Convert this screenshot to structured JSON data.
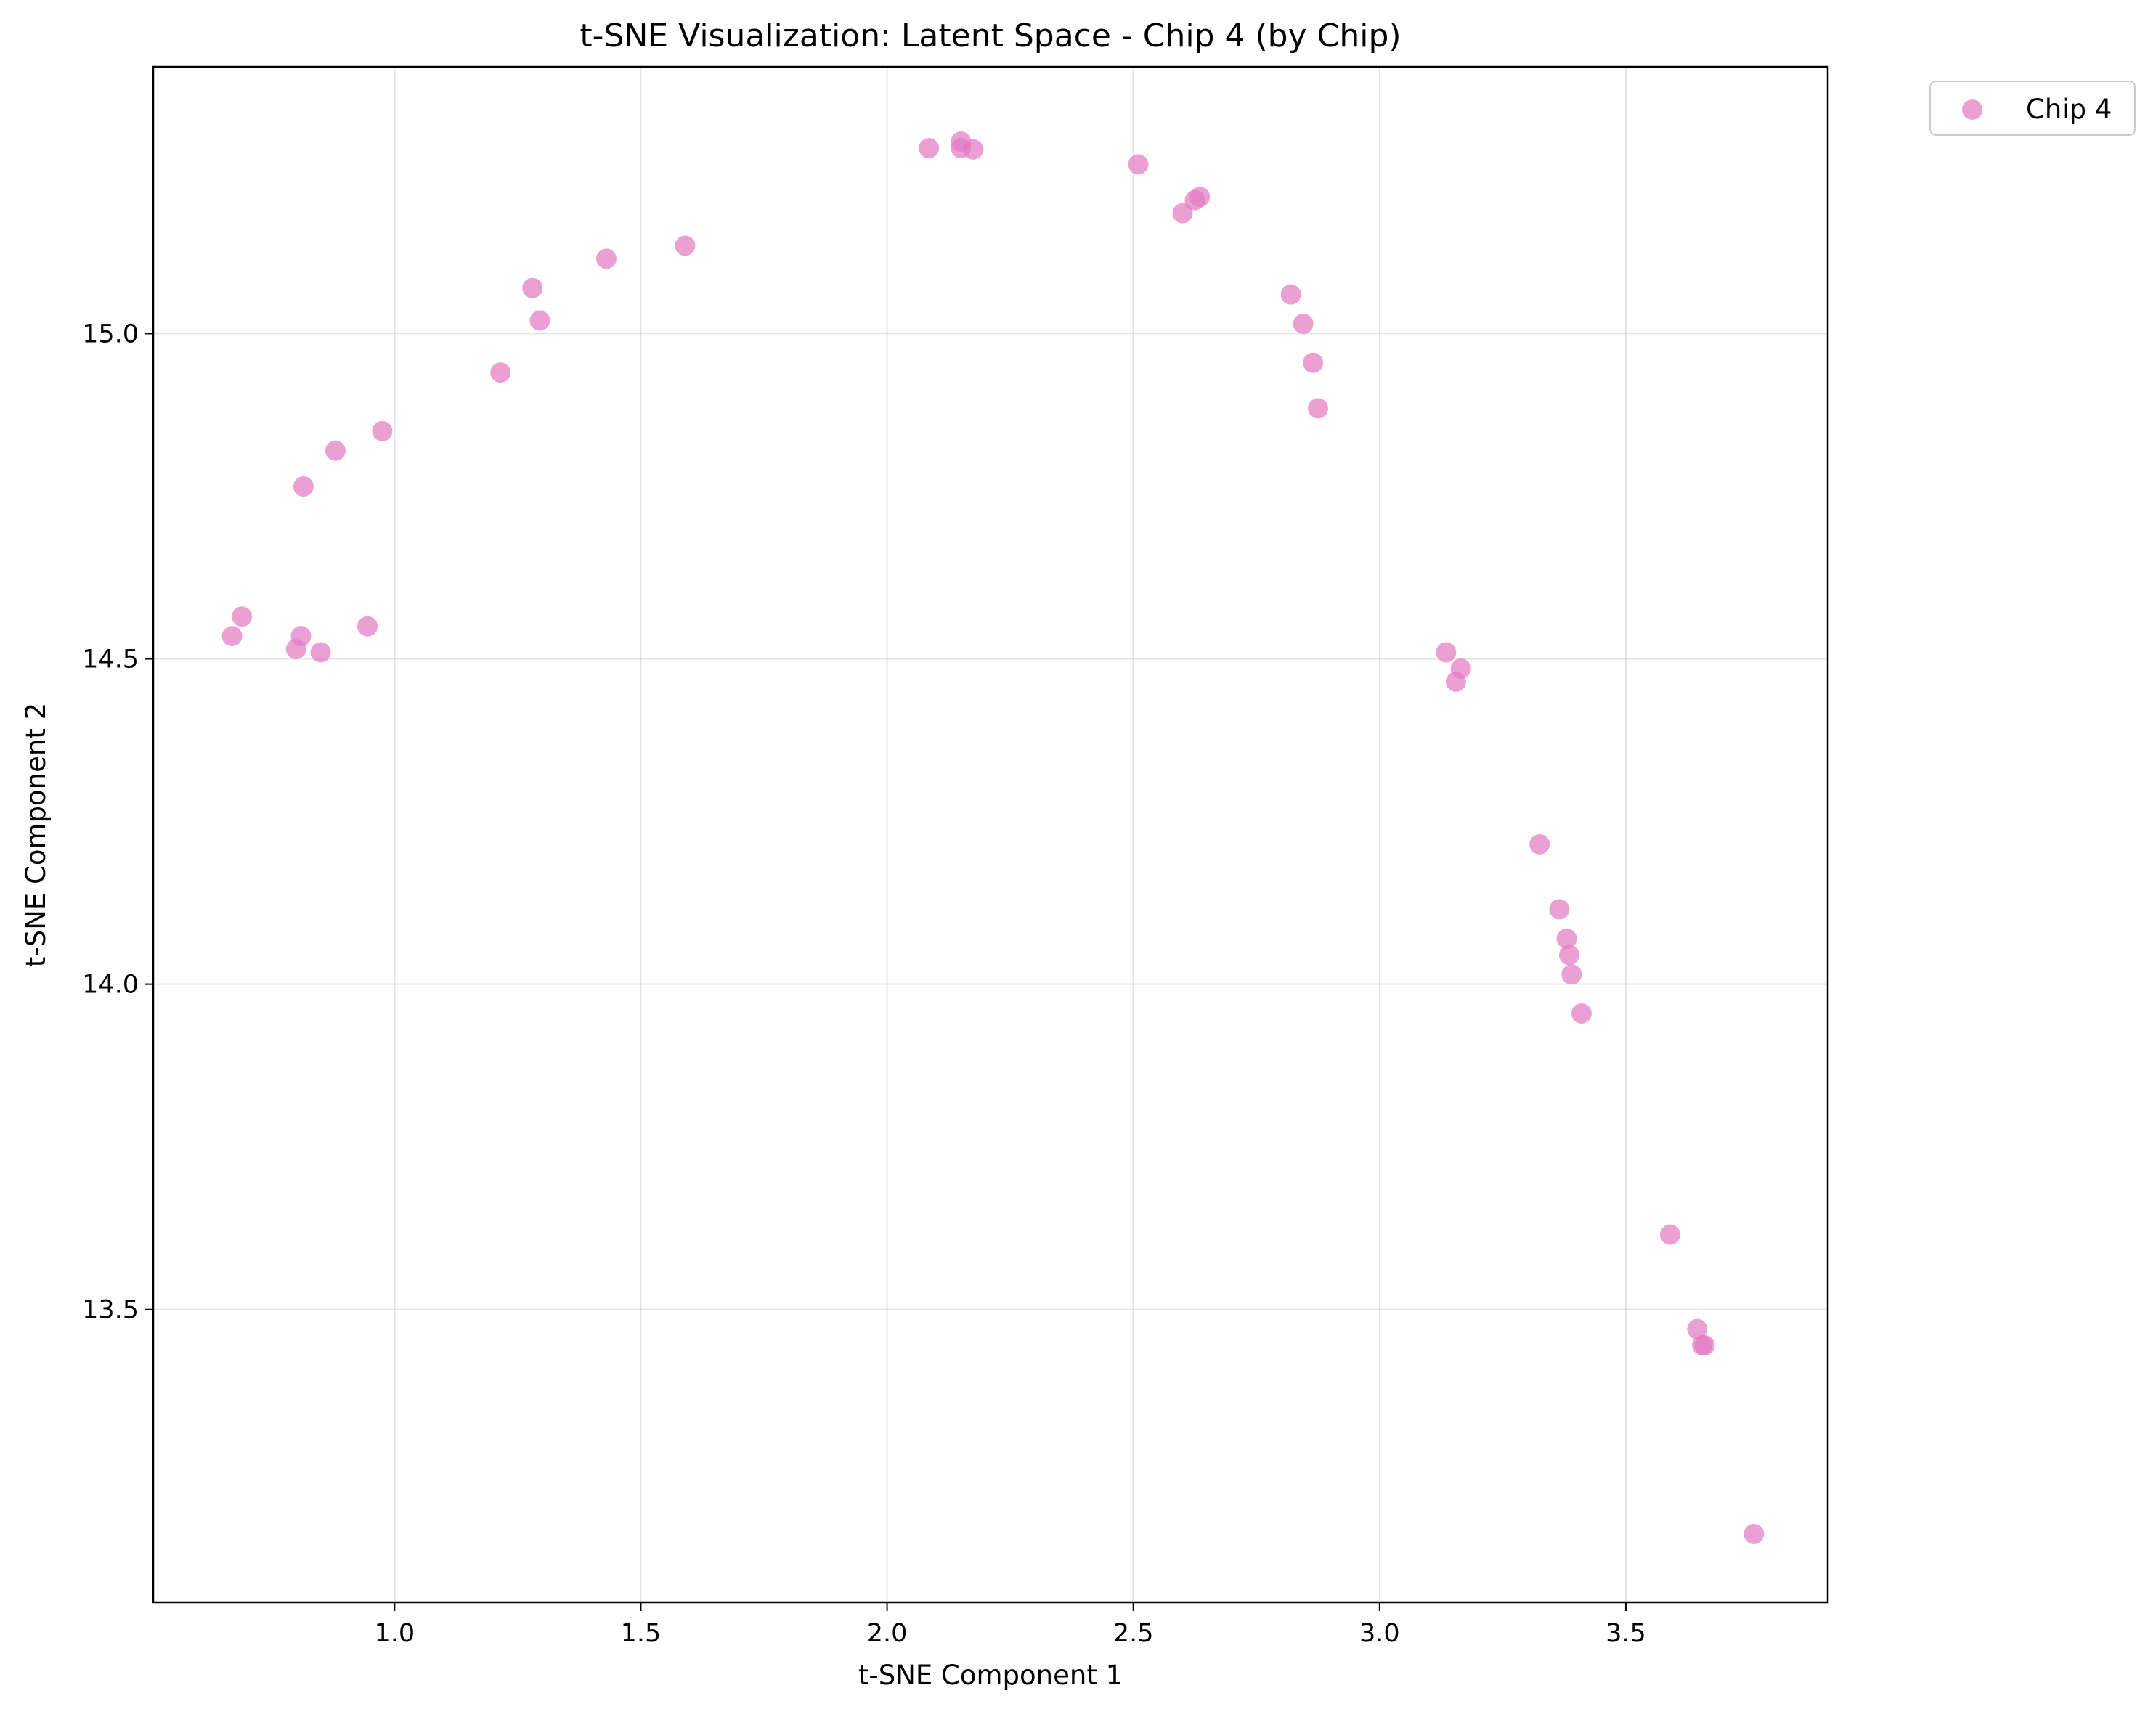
{
  "chart_data": {
    "type": "scatter",
    "title": "t-SNE Visualization: Latent Space - Chip 4 (by Chip)",
    "xlabel": "t-SNE Component 1",
    "ylabel": "t-SNE Component 2",
    "xlim": [
      0.51,
      3.91
    ],
    "ylim": [
      13.05,
      15.41
    ],
    "xticks": [
      1.0,
      1.5,
      2.0,
      2.5,
      3.0,
      3.5
    ],
    "xtick_labels": [
      "1.0",
      "1.5",
      "2.0",
      "2.5",
      "3.0",
      "3.5"
    ],
    "yticks": [
      13.5,
      14.0,
      14.5,
      15.0
    ],
    "ytick_labels": [
      "13.5",
      "14.0",
      "14.5",
      "15.0"
    ],
    "grid": true,
    "legend_position": "outside-top-right",
    "series": [
      {
        "name": "Chip 4",
        "color": "#e377c2",
        "points": [
          [
            0.67,
            14.535
          ],
          [
            0.69,
            14.565
          ],
          [
            0.8,
            14.515
          ],
          [
            0.81,
            14.535
          ],
          [
            0.85,
            14.51
          ],
          [
            0.945,
            14.55
          ],
          [
            0.815,
            14.765
          ],
          [
            0.88,
            14.82
          ],
          [
            0.975,
            14.85
          ],
          [
            1.215,
            14.94
          ],
          [
            1.28,
            15.07
          ],
          [
            1.295,
            15.02
          ],
          [
            1.43,
            15.115
          ],
          [
            1.59,
            15.135
          ],
          [
            2.085,
            15.285
          ],
          [
            2.15,
            15.295
          ],
          [
            2.15,
            15.285
          ],
          [
            2.175,
            15.283
          ],
          [
            2.51,
            15.26
          ],
          [
            2.6,
            15.185
          ],
          [
            2.625,
            15.205
          ],
          [
            2.635,
            15.21
          ],
          [
            2.82,
            15.06
          ],
          [
            2.845,
            15.015
          ],
          [
            2.865,
            14.955
          ],
          [
            2.875,
            14.885
          ],
          [
            3.135,
            14.51
          ],
          [
            3.155,
            14.465
          ],
          [
            3.165,
            14.485
          ],
          [
            3.325,
            14.215
          ],
          [
            3.365,
            14.115
          ],
          [
            3.38,
            14.07
          ],
          [
            3.385,
            14.045
          ],
          [
            3.39,
            14.015
          ],
          [
            3.41,
            13.955
          ],
          [
            3.59,
            13.615
          ],
          [
            3.645,
            13.47
          ],
          [
            3.655,
            13.445
          ],
          [
            3.66,
            13.445
          ],
          [
            3.76,
            13.155
          ]
        ]
      }
    ]
  }
}
